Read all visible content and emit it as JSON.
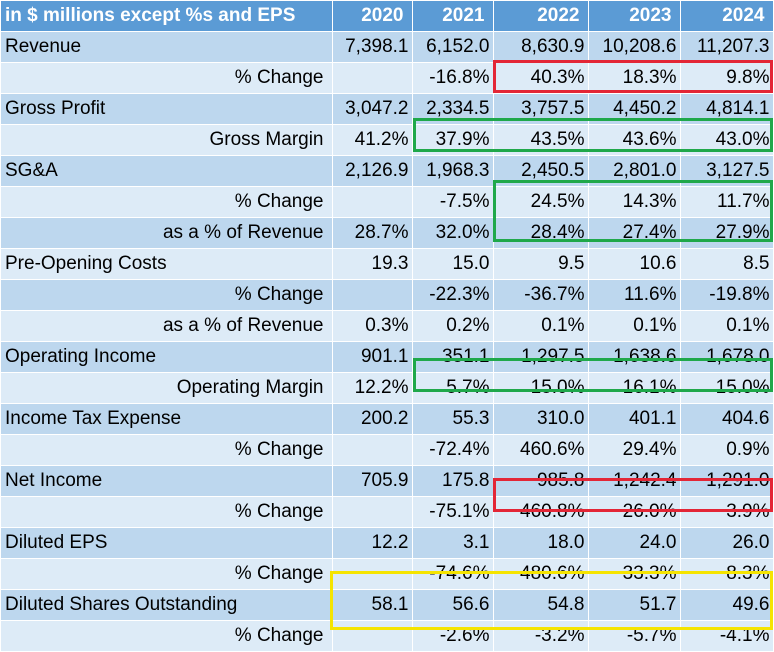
{
  "header": {
    "label": "in $ millions except %s and EPS",
    "years": [
      "2020",
      "2021",
      "2022",
      "2023",
      "2024"
    ]
  },
  "rows": [
    {
      "label": "Revenue",
      "indent": false,
      "values": [
        "7,398.1",
        "6,152.0",
        "8,630.9",
        "10,208.6",
        "11,207.3"
      ]
    },
    {
      "label": "% Change",
      "indent": true,
      "values": [
        "",
        "-16.8%",
        "40.3%",
        "18.3%",
        "9.8%"
      ]
    },
    {
      "label": "Gross Profit",
      "indent": false,
      "values": [
        "3,047.2",
        "2,334.5",
        "3,757.5",
        "4,450.2",
        "4,814.1"
      ]
    },
    {
      "label": "Gross Margin",
      "indent": true,
      "values": [
        "41.2%",
        "37.9%",
        "43.5%",
        "43.6%",
        "43.0%"
      ]
    },
    {
      "label": "SG&A",
      "indent": false,
      "values": [
        "2,126.9",
        "1,968.3",
        "2,450.5",
        "2,801.0",
        "3,127.5"
      ]
    },
    {
      "label": "% Change",
      "indent": true,
      "values": [
        "",
        "-7.5%",
        "24.5%",
        "14.3%",
        "11.7%"
      ]
    },
    {
      "label": "as a % of Revenue",
      "indent": true,
      "values": [
        "28.7%",
        "32.0%",
        "28.4%",
        "27.4%",
        "27.9%"
      ]
    },
    {
      "label": "Pre-Opening Costs",
      "indent": false,
      "values": [
        "19.3",
        "15.0",
        "9.5",
        "10.6",
        "8.5"
      ]
    },
    {
      "label": "% Change",
      "indent": true,
      "values": [
        "",
        "-22.3%",
        "-36.7%",
        "11.6%",
        "-19.8%"
      ]
    },
    {
      "label": "as a % of Revenue",
      "indent": true,
      "values": [
        "0.3%",
        "0.2%",
        "0.1%",
        "0.1%",
        "0.1%"
      ]
    },
    {
      "label": "Operating Income",
      "indent": false,
      "values": [
        "901.1",
        "351.1",
        "1,297.5",
        "1,638.6",
        "1,678.0"
      ]
    },
    {
      "label": "Operating Margin",
      "indent": true,
      "values": [
        "12.2%",
        "5.7%",
        "15.0%",
        "16.1%",
        "15.0%"
      ]
    },
    {
      "label": "Income Tax Expense",
      "indent": false,
      "values": [
        "200.2",
        "55.3",
        "310.0",
        "401.1",
        "404.6"
      ]
    },
    {
      "label": "% Change",
      "indent": true,
      "values": [
        "",
        "-72.4%",
        "460.6%",
        "29.4%",
        "0.9%"
      ]
    },
    {
      "label": "Net Income",
      "indent": false,
      "values": [
        "705.9",
        "175.8",
        "985.8",
        "1,242.4",
        "1,291.0"
      ]
    },
    {
      "label": "% Change",
      "indent": true,
      "values": [
        "",
        "-75.1%",
        "460.8%",
        "26.0%",
        "3.9%"
      ]
    },
    {
      "label": "Diluted EPS",
      "indent": false,
      "values": [
        "12.2",
        "3.1",
        "18.0",
        "24.0",
        "26.0"
      ]
    },
    {
      "label": "% Change",
      "indent": true,
      "values": [
        "",
        "-74.6%",
        "480.6%",
        "33.3%",
        "8.3%"
      ]
    },
    {
      "label": "Diluted Shares Outstanding",
      "indent": false,
      "values": [
        "58.1",
        "56.6",
        "54.8",
        "51.7",
        "49.6"
      ]
    },
    {
      "label": "% Change",
      "indent": true,
      "values": [
        "",
        "-2.6%",
        "-3.2%",
        "-5.7%",
        "-4.1%"
      ]
    }
  ],
  "colors": {
    "header_bg": "#5b9bd5",
    "band_dark": "#bdd7ee",
    "band_light": "#ddebf7",
    "highlight_red": "#e32636",
    "highlight_green": "#1fa84a",
    "highlight_yellow": "#f5e400"
  }
}
